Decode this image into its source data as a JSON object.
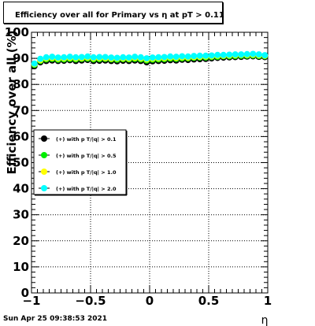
{
  "chart_data": {
    "type": "scatter",
    "title": "Efficiency over all for Primary vs   η at pT > 0.11",
    "xlabel": "η",
    "ylabel": "Efficiency over all (%)",
    "xlim": [
      -1,
      1
    ],
    "ylim": [
      0,
      100
    ],
    "x_ticks": [
      "−1",
      "−0.5",
      "0",
      "0.5",
      "1"
    ],
    "x_tick_values": [
      -1,
      -0.5,
      0,
      0.5,
      1
    ],
    "y_ticks": [
      "0",
      "10",
      "20",
      "30",
      "40",
      "50",
      "60",
      "70",
      "80",
      "90",
      "100"
    ],
    "y_tick_values": [
      0,
      10,
      20,
      30,
      40,
      50,
      60,
      70,
      80,
      90,
      100
    ],
    "grid": true,
    "legend_position": "left-middle",
    "x": [
      -0.975,
      -0.925,
      -0.875,
      -0.825,
      -0.775,
      -0.725,
      -0.675,
      -0.625,
      -0.575,
      -0.525,
      -0.475,
      -0.425,
      -0.375,
      -0.325,
      -0.275,
      -0.225,
      -0.175,
      -0.125,
      -0.075,
      -0.025,
      0.025,
      0.075,
      0.125,
      0.175,
      0.225,
      0.275,
      0.325,
      0.375,
      0.425,
      0.475,
      0.525,
      0.575,
      0.625,
      0.675,
      0.725,
      0.775,
      0.825,
      0.875,
      0.925,
      0.975
    ],
    "series": [
      {
        "name": "(+) with p T/|q| > 0.1",
        "color": "#000000",
        "values": [
          87.0,
          88.5,
          89.0,
          89.2,
          89.0,
          89.1,
          89.3,
          89.0,
          89.2,
          89.4,
          89.0,
          89.1,
          89.2,
          89.0,
          88.9,
          89.1,
          89.0,
          89.2,
          89.0,
          88.5,
          88.9,
          89.0,
          89.1,
          89.3,
          89.2,
          89.5,
          89.4,
          89.6,
          89.7,
          89.8,
          90.0,
          90.2,
          90.3,
          90.4,
          90.5,
          90.6,
          90.7,
          90.8,
          90.6,
          90.5
        ]
      },
      {
        "name": "(+) with p T/|q| > 0.5",
        "color": "#00ee00",
        "values": [
          87.5,
          89.0,
          89.6,
          89.8,
          89.5,
          89.6,
          89.8,
          89.6,
          89.8,
          89.9,
          89.6,
          89.7,
          89.8,
          89.6,
          89.5,
          89.7,
          89.6,
          89.8,
          89.6,
          89.2,
          89.5,
          89.6,
          89.7,
          89.9,
          89.8,
          90.0,
          90.0,
          90.2,
          90.3,
          90.3,
          90.5,
          90.6,
          90.8,
          90.8,
          90.9,
          91.0,
          91.0,
          91.1,
          90.9,
          90.8
        ]
      },
      {
        "name": "(+) with p T/|q| > 1.0",
        "color": "#ffff00",
        "values": [
          87.8,
          89.3,
          90.0,
          90.2,
          89.9,
          90.0,
          90.2,
          90.0,
          90.1,
          90.3,
          90.0,
          90.1,
          90.1,
          89.9,
          89.9,
          90.0,
          89.9,
          90.2,
          90.0,
          89.6,
          89.9,
          90.0,
          90.1,
          90.3,
          90.2,
          90.4,
          90.3,
          90.5,
          90.6,
          90.7,
          90.8,
          91.0,
          91.0,
          91.1,
          91.2,
          91.3,
          91.3,
          91.4,
          91.2,
          91.0
        ]
      },
      {
        "name": "(+) with p T/|q| > 2.0",
        "color": "#00ffff",
        "values": [
          88.0,
          89.8,
          90.4,
          90.6,
          90.3,
          90.4,
          90.6,
          90.4,
          90.5,
          90.7,
          90.4,
          90.5,
          90.5,
          90.3,
          90.2,
          90.4,
          90.3,
          90.6,
          90.4,
          90.0,
          90.3,
          90.4,
          90.5,
          90.7,
          90.6,
          90.8,
          90.7,
          90.9,
          91.0,
          91.0,
          91.1,
          91.3,
          91.3,
          91.4,
          91.5,
          91.5,
          91.6,
          91.7,
          91.5,
          91.2
        ]
      }
    ]
  },
  "footer": {
    "timestamp": "Sun Apr 25 09:38:53 2021"
  }
}
